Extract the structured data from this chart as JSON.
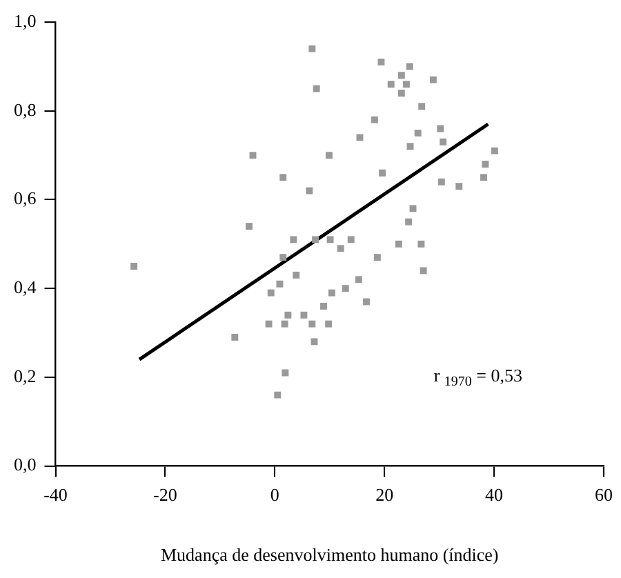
{
  "chart_data": {
    "type": "scatter",
    "xlabel": "Mudança de desenvolvimento humano (índice)",
    "annotations": [
      "r $_{1970}$ = 0,53"
    ],
    "grid": false,
    "legend": false,
    "xlim": [
      -40,
      60
    ],
    "xticks": [
      -40,
      -20,
      0,
      20,
      40,
      60
    ],
    "ylim": [
      0,
      1
    ],
    "yticks": [
      {
        "value": 0,
        "label": "0,0"
      },
      {
        "value": 0.2,
        "label": "0,2"
      },
      {
        "value": 0.4,
        "label": "0,4"
      },
      {
        "value": 0.6,
        "label": "0,6"
      },
      {
        "value": 0.8,
        "label": "0,8"
      },
      {
        "value": 1,
        "label": "1,0"
      }
    ],
    "series": [
      {
        "marker": "square",
        "color": "#999999",
        "x": [
          -25.7,
          -4.0,
          -4.7,
          -7.3,
          6.8,
          7.6,
          19.4,
          24.6,
          23.1,
          21.2,
          24.0,
          23.1,
          28.9,
          26.8,
          18.2,
          15.5,
          26.1,
          30.2,
          24.7,
          30.7,
          9.9,
          1.5,
          19.6,
          6.3,
          30.4,
          33.6,
          38.1,
          38.4,
          40.1,
          25.2,
          24.4,
          3.4,
          7.4,
          10.1,
          12.0,
          13.9,
          1.5,
          18.7,
          22.6,
          26.7,
          27.1,
          3.9,
          0.9,
          -0.7,
          10.4,
          12.9,
          15.3,
          16.7,
          8.9,
          -1.1,
          1.8,
          2.4,
          5.3,
          6.8,
          9.8,
          7.2,
          1.9,
          0.5
        ],
        "values": [
          0.45,
          0.7,
          0.54,
          0.29,
          0.94,
          0.85,
          0.91,
          0.9,
          0.88,
          0.86,
          0.86,
          0.84,
          0.87,
          0.81,
          0.78,
          0.74,
          0.75,
          0.76,
          0.72,
          0.73,
          0.7,
          0.65,
          0.66,
          0.62,
          0.64,
          0.63,
          0.65,
          0.68,
          0.71,
          0.58,
          0.55,
          0.51,
          0.51,
          0.51,
          0.49,
          0.51,
          0.47,
          0.47,
          0.5,
          0.5,
          0.44,
          0.43,
          0.41,
          0.39,
          0.39,
          0.4,
          0.42,
          0.37,
          0.36,
          0.32,
          0.32,
          0.34,
          0.34,
          0.32,
          0.32,
          0.28,
          0.21,
          0.16
        ]
      },
      {
        "type": "line",
        "color": "#000000",
        "x": [
          -24.7,
          38.9
        ],
        "values": [
          0.24,
          0.77
        ]
      }
    ]
  }
}
